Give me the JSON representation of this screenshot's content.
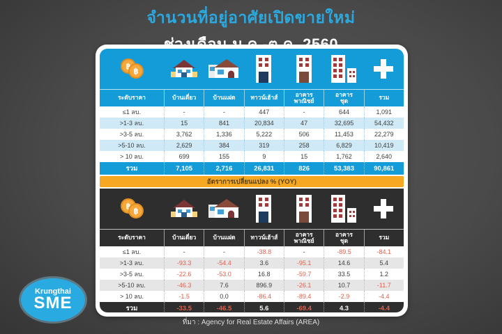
{
  "title": {
    "line1": "จำนวนที่อยู่อาศัยเปิดขายใหม่",
    "line2": "ช่วงเดือน ม.ค.-ต.ค. 2560"
  },
  "band_label": "อัตราการเปลี่ยนแปลง % (YOY)",
  "footer": "ที่มา : Agency for Real Estate Affairs (AREA)",
  "logo": {
    "line1": "Krungthai",
    "line2": "SME"
  },
  "columns": [
    "ระดับราคา",
    "บ้านเดี่ยว",
    "บ้านแฝด",
    "ทาวน์เฮ้าส์",
    "อาคาร\nพาณิชย์",
    "อาคาร\nชุด",
    "รวม"
  ],
  "icons": [
    "coins-icon",
    "detached-house-icon",
    "semi-detached-house-icon",
    "townhouse-icon",
    "commercial-building-icon",
    "condo-icon",
    "plus-icon"
  ],
  "chart_data": [
    {
      "type": "table",
      "title": "จำนวนที่อยู่อาศัยเปิดขายใหม่ ช่วงเดือน ม.ค.-ต.ค. 2560",
      "columns": [
        "ระดับราคา",
        "บ้านเดี่ยว",
        "บ้านแฝด",
        "ทาวน์เฮ้าส์",
        "อาคารพาณิชย์",
        "อาคารชุด",
        "รวม"
      ],
      "rows": [
        [
          "≤1 ลบ.",
          "-",
          "-",
          "447",
          "-",
          "644",
          "1,091"
        ],
        [
          ">1-3 ลบ.",
          "15",
          "841",
          "20,834",
          "47",
          "32,695",
          "54,432"
        ],
        [
          ">3-5 ลบ.",
          "3,762",
          "1,336",
          "5,222",
          "506",
          "11,453",
          "22,279"
        ],
        [
          ">5-10 ลบ.",
          "2,629",
          "384",
          "319",
          "258",
          "6,829",
          "10,419"
        ],
        [
          "> 10 ลบ.",
          "699",
          "155",
          "9",
          "15",
          "1,762",
          "2,640"
        ]
      ],
      "total": [
        "รวม",
        "7,105",
        "2,716",
        "26,831",
        "826",
        "53,383",
        "90,861"
      ]
    },
    {
      "type": "table",
      "title": "อัตราการเปลี่ยนแปลง % (YOY)",
      "columns": [
        "ระดับราคา",
        "บ้านเดี่ยว",
        "บ้านแฝด",
        "ทาวน์เฮ้าส์",
        "อาคารพาณิชย์",
        "อาคารชุด",
        "รวม"
      ],
      "rows": [
        [
          "≤1 ลบ.",
          "-",
          "-",
          "-38.8",
          "-",
          "-89.5",
          "-84.1"
        ],
        [
          ">1-3 ลบ.",
          "-93.3",
          "-54.4",
          "3.6",
          "-95.1",
          "14.6",
          "5.4"
        ],
        [
          ">3-5 ลบ.",
          "-22.6",
          "-53.0",
          "16.8",
          "-59.7",
          "33.5",
          "1.2"
        ],
        [
          ">5-10 ลบ.",
          "-46.3",
          "7.6",
          "896.9",
          "-26.1",
          "10.7",
          "-11.7"
        ],
        [
          "> 10 ลบ.",
          "-1.5",
          "0.0",
          "-86.4",
          "-89.4",
          "-2.9",
          "-4.4"
        ]
      ],
      "total": [
        "รวม",
        "-33.5",
        "-46.5",
        "5.6",
        "-69.4",
        "4.3",
        "-4.4"
      ]
    }
  ],
  "colors": {
    "background": "#4a4a4a",
    "title_blue": "#2aa9e0",
    "accent_blue": "#149cd8",
    "stripe_blue": "#cfe9f7",
    "dark_header": "#2e2e2e",
    "stripe_gray": "#e6e6e6",
    "band_yellow": "#f7a823",
    "negative_red": "#e0604a",
    "logo_blue": "#29abe2",
    "coin_gold": "#f6a83b"
  }
}
